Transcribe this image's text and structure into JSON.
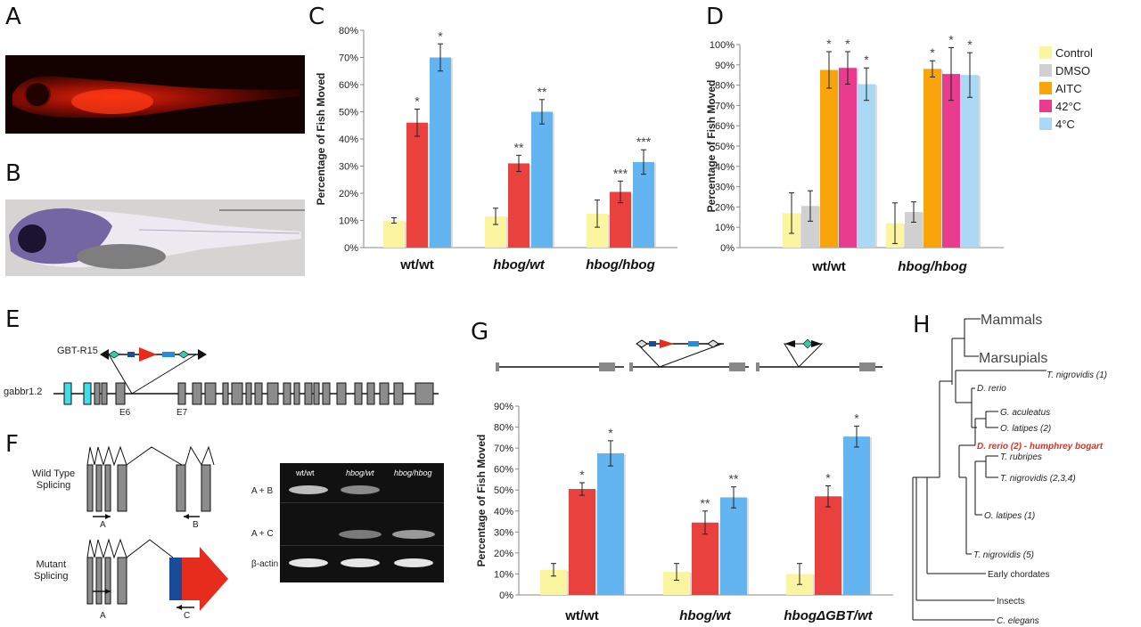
{
  "panels": {
    "A": "A",
    "B": "B",
    "C": "C",
    "D": "D",
    "E": "E",
    "F": "F",
    "G": "G",
    "H": "H"
  },
  "colors": {
    "control": "#fbf5a0",
    "dmso": "#d0d0d0",
    "aitc": "#f8a40a",
    "c42": "#ea3c8e",
    "c4": "#aad8f5",
    "red": "#e8413e",
    "blue": "#63b5f2",
    "yellow": "#fbf5a0",
    "exon": "#8c8c8c",
    "cyan": "#41dde8",
    "brand_red": "#e62c1c",
    "dark_blue": "#18509a"
  },
  "chart_data": [
    {
      "panel": "C",
      "type": "bar",
      "categories": [
        "wt/wt",
        "hbog/wt",
        "hbog/hbog"
      ],
      "ylabel": "Percentage of Fish Moved",
      "ylim": [
        0,
        80
      ],
      "yticks": [
        "0%",
        "10%",
        "20%",
        "30%",
        "40%",
        "50%",
        "60%",
        "70%",
        "80%"
      ],
      "series": [
        {
          "values": [
            10,
            11.5,
            12.5
          ],
          "errors": [
            1,
            3,
            5
          ],
          "stars": [
            "",
            "",
            ""
          ]
        },
        {
          "values": [
            46,
            31,
            20.5
          ],
          "errors": [
            5,
            3,
            4
          ],
          "stars": [
            "*",
            "**",
            "***"
          ]
        },
        {
          "values": [
            70,
            50,
            31.5
          ],
          "errors": [
            5,
            4.5,
            4.5
          ],
          "stars": [
            "*",
            "**",
            "***"
          ]
        }
      ]
    },
    {
      "panel": "D",
      "type": "bar",
      "categories": [
        "wt/wt",
        "hbog/hbog"
      ],
      "ylabel": "Percentage of Fish Moved",
      "ylim": [
        0,
        100
      ],
      "yticks": [
        "0%",
        "10%",
        "20%",
        "30%",
        "40%",
        "50%",
        "60%",
        "70%",
        "80%",
        "90%",
        "100%"
      ],
      "series": [
        {
          "name": "Control",
          "values": [
            17,
            12
          ],
          "errors": [
            10,
            10
          ],
          "stars": [
            "",
            ""
          ]
        },
        {
          "name": "DMSO",
          "values": [
            20.5,
            17.5
          ],
          "errors": [
            7.5,
            5
          ],
          "stars": [
            "",
            ""
          ]
        },
        {
          "name": "AITC",
          "values": [
            87.5,
            88
          ],
          "errors": [
            9,
            4
          ],
          "stars": [
            "*",
            "*"
          ]
        },
        {
          "name": "42°C",
          "values": [
            88.5,
            85.5
          ],
          "errors": [
            8,
            13
          ],
          "stars": [
            "*",
            "*"
          ]
        },
        {
          "name": "4°C",
          "values": [
            80.5,
            85
          ],
          "errors": [
            8,
            11
          ],
          "stars": [
            "*",
            "*"
          ]
        }
      ],
      "legend_position": "right"
    },
    {
      "panel": "G",
      "type": "bar",
      "categories": [
        "wt/wt",
        "hbog/wt",
        "hbogΔGBT/wt"
      ],
      "ylabel": "Percentage of Fish Moved",
      "ylim": [
        0,
        90
      ],
      "yticks": [
        "0%",
        "10%",
        "20%",
        "30%",
        "40%",
        "50%",
        "60%",
        "70%",
        "80%",
        "90%"
      ],
      "series": [
        {
          "values": [
            12,
            11,
            10
          ],
          "errors": [
            3,
            4,
            5
          ],
          "stars": [
            "",
            "",
            ""
          ]
        },
        {
          "values": [
            50.5,
            34.5,
            47
          ],
          "errors": [
            3,
            5.5,
            5
          ],
          "stars": [
            "*",
            "**",
            "*"
          ]
        },
        {
          "values": [
            67.5,
            46.5,
            75.5
          ],
          "errors": [
            6,
            5,
            5
          ],
          "stars": [
            "*",
            "**",
            "*"
          ]
        }
      ]
    }
  ],
  "gene_diagram": {
    "construct": "GBT-R15",
    "gene": "gabbr1.2",
    "exon_labels": [
      "E6",
      "E7"
    ]
  },
  "splicing": {
    "wild_type": "Wild Type\nSplicing",
    "mutant": "Mutant\nSplicing",
    "primers": [
      "A",
      "B",
      "A",
      "C"
    ]
  },
  "gel": {
    "lanes": [
      "wt/wt",
      "hbog/wt",
      "hbog/hbog"
    ],
    "rows": [
      "A + B",
      "A + C",
      "β-actin"
    ]
  },
  "tree": {
    "labels": [
      "Mammals",
      "Marsupials",
      "T. nigrovidis (1)",
      "D. rerio",
      "G. aculeatus",
      "O. latipes (2)",
      "D. rerio (2) - humphrey bogart",
      "T. rubripes",
      "T. nigrovidis (2,3,4)",
      "O. latipes (1)",
      "T. nigrovidis (5)",
      "Early chordates",
      "Insects",
      "C. elegans"
    ]
  }
}
